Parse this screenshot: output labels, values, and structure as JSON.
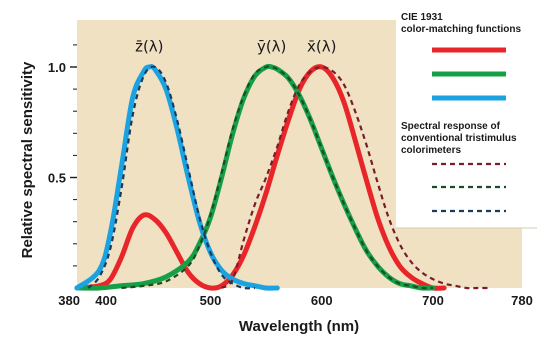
{
  "chart_data": {
    "type": "line",
    "xlabel": "Wavelength (nm)",
    "ylabel": "Relative spectral sensitivity",
    "xlim": [
      380,
      780
    ],
    "ylim": [
      0,
      1.2
    ],
    "x_ticks": [
      {
        "value": 380,
        "label": "380"
      },
      {
        "value": 400,
        "label": "400"
      },
      {
        "value": 500,
        "label": "500"
      },
      {
        "value": 600,
        "label": "600"
      },
      {
        "value": 700,
        "label": "700"
      },
      {
        "value": 780,
        "label": "780"
      }
    ],
    "y_ticks": [
      {
        "value": 0.5,
        "label": "0.5"
      },
      {
        "value": 1.0,
        "label": "1.0"
      }
    ],
    "curve_labels": [
      {
        "text": "z̄(λ)",
        "x": 445,
        "y": 1.07
      },
      {
        "text": "ȳ(λ)",
        "x": 555,
        "y": 1.07
      },
      {
        "text": "x̄(λ)",
        "x": 600,
        "y": 1.07
      }
    ],
    "legend": {
      "placement": "top-right",
      "group1_title": [
        "CIE 1931",
        "color-matching functions"
      ],
      "group2_title": [
        "Spectral response of",
        "conventional tristimulus",
        "colorimeters"
      ]
    },
    "series": [
      {
        "id": "x-bar",
        "style": "solid",
        "color": "#e8262a",
        "x": [
          380,
          400,
          410,
          420,
          430,
          440,
          450,
          460,
          470,
          480,
          490,
          500,
          510,
          520,
          530,
          540,
          550,
          560,
          570,
          580,
          590,
          600,
          610,
          620,
          630,
          640,
          650,
          660,
          670,
          680,
          690,
          700,
          710
        ],
        "values": [
          0.0,
          0.01,
          0.04,
          0.14,
          0.27,
          0.33,
          0.31,
          0.25,
          0.16,
          0.07,
          0.02,
          0.0,
          0.01,
          0.06,
          0.15,
          0.28,
          0.43,
          0.6,
          0.76,
          0.9,
          0.98,
          1.0,
          0.95,
          0.84,
          0.67,
          0.49,
          0.32,
          0.19,
          0.1,
          0.05,
          0.02,
          0.0,
          0.0
        ]
      },
      {
        "id": "y-bar",
        "style": "solid",
        "color": "#16a046",
        "x": [
          380,
          400,
          420,
          440,
          460,
          480,
          490,
          500,
          510,
          520,
          530,
          540,
          550,
          555,
          560,
          570,
          580,
          590,
          600,
          610,
          620,
          630,
          640,
          650,
          660,
          670,
          680,
          690,
          700
        ],
        "values": [
          0.0,
          0.0,
          0.01,
          0.02,
          0.05,
          0.12,
          0.2,
          0.32,
          0.5,
          0.7,
          0.86,
          0.96,
          1.0,
          1.0,
          0.99,
          0.95,
          0.87,
          0.76,
          0.63,
          0.5,
          0.38,
          0.27,
          0.17,
          0.1,
          0.05,
          0.02,
          0.01,
          0.0,
          0.0
        ]
      },
      {
        "id": "z-bar",
        "style": "solid",
        "color": "#1aa3e0",
        "x": [
          380,
          400,
          410,
          420,
          430,
          440,
          445,
          450,
          460,
          470,
          480,
          490,
          500,
          510,
          520,
          530,
          540,
          550,
          560
        ],
        "values": [
          0.0,
          0.08,
          0.25,
          0.55,
          0.86,
          0.98,
          1.0,
          0.99,
          0.9,
          0.72,
          0.5,
          0.3,
          0.16,
          0.08,
          0.04,
          0.02,
          0.01,
          0.0,
          0.0
        ]
      },
      {
        "id": "colorimeter-x",
        "style": "dashed",
        "color": "#7a1c2a",
        "x": [
          510,
          520,
          530,
          540,
          550,
          560,
          570,
          580,
          590,
          600,
          610,
          620,
          630,
          640,
          650,
          660,
          670,
          680,
          690,
          700,
          710,
          720,
          730,
          740,
          750
        ],
        "values": [
          0.0,
          0.04,
          0.22,
          0.38,
          0.5,
          0.64,
          0.8,
          0.92,
          0.98,
          1.0,
          0.98,
          0.92,
          0.8,
          0.65,
          0.48,
          0.32,
          0.2,
          0.12,
          0.07,
          0.04,
          0.02,
          0.01,
          0.0,
          0.0,
          0.0
        ]
      },
      {
        "id": "colorimeter-y",
        "style": "dashed",
        "color": "#1d4a2a",
        "x": [
          420,
          440,
          460,
          480,
          490,
          500,
          510,
          520,
          530,
          540,
          550,
          555,
          560,
          570,
          580,
          590,
          600,
          610,
          620,
          630,
          640,
          650,
          660,
          670,
          680,
          690,
          700
        ],
        "values": [
          0.0,
          0.01,
          0.03,
          0.1,
          0.19,
          0.33,
          0.52,
          0.72,
          0.87,
          0.97,
          1.0,
          1.0,
          0.99,
          0.95,
          0.87,
          0.76,
          0.63,
          0.5,
          0.38,
          0.27,
          0.17,
          0.1,
          0.05,
          0.02,
          0.01,
          0.0,
          0.0
        ]
      },
      {
        "id": "colorimeter-z",
        "style": "dashed",
        "color": "#1a3a5e",
        "x": [
          390,
          400,
          410,
          420,
          430,
          440,
          450,
          460,
          470,
          480,
          490,
          500,
          510,
          520,
          530,
          540
        ],
        "values": [
          0.0,
          0.05,
          0.18,
          0.45,
          0.78,
          0.96,
          1.0,
          0.93,
          0.76,
          0.54,
          0.32,
          0.16,
          0.06,
          0.02,
          0.0,
          0.0
        ]
      }
    ]
  }
}
